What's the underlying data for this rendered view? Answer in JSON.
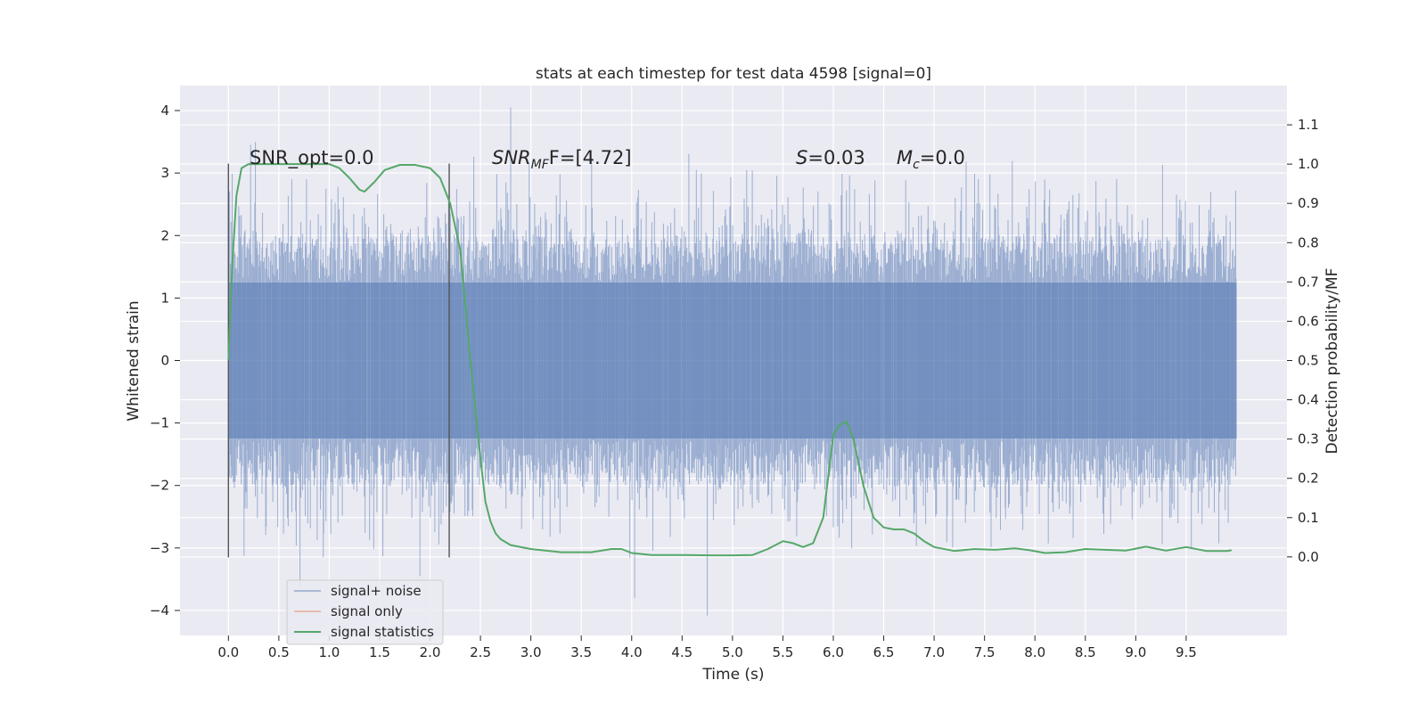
{
  "chart_data": {
    "type": "line",
    "title": "stats at each timestep for test data 4598 [signal=0]",
    "xlabel": "Time (s)",
    "ylabel_left": "Whitened strain",
    "ylabel_right": "Detection probability/MF",
    "xlim": [
      -0.48,
      10.5
    ],
    "ylim_left": [
      -4.4,
      4.4
    ],
    "ylim_right": [
      -0.2,
      1.2
    ],
    "x_ticks": [
      "0.0",
      "0.5",
      "1.0",
      "1.5",
      "2.0",
      "2.5",
      "3.0",
      "3.5",
      "4.0",
      "4.5",
      "5.0",
      "5.5",
      "6.0",
      "6.5",
      "7.0",
      "7.5",
      "8.0",
      "8.5",
      "9.0",
      "9.5"
    ],
    "y_left_ticks": [
      "4",
      "3",
      "2",
      "1",
      "0",
      "−1",
      "−2",
      "−3",
      "−4"
    ],
    "y_right_ticks": [
      "1.1",
      "1.0",
      "0.9",
      "0.8",
      "0.7",
      "0.6",
      "0.5",
      "0.4",
      "0.3",
      "0.2",
      "0.1",
      "0.0"
    ],
    "grid": true,
    "legend_position": "lower-left",
    "colors": {
      "background": "#eaeaf2",
      "grid": "#ffffff",
      "noise": "#4c72b0",
      "signal_only": "#dd8452",
      "statistics": "#55a868",
      "window": "#555555"
    },
    "annotations": {
      "snr_opt": "SNR_opt=0.0",
      "snr_mf_base": "SNR",
      "snr_mf_sub": "MF",
      "snr_mf_value": "F=[4.72]",
      "s_label": "S",
      "s_value": "=0.03",
      "mc_base": "M",
      "mc_sub": "c",
      "mc_value": "=0.0"
    },
    "window_lines_x": [
      0.0,
      2.19
    ],
    "window_lines_ylim": [
      -3.15,
      3.15
    ],
    "series": [
      {
        "name": "signal+ noise",
        "axis": "left",
        "t_range": [
          0.0,
          10.0
        ],
        "core_amplitude": 1.25,
        "spike_range_upper": [
          2.0,
          3.6
        ],
        "spike_range_lower": [
          -2.0,
          -3.5
        ],
        "extremes": [
          [
            2.8,
            4.05
          ],
          [
            0.22,
            3.45
          ],
          [
            4.75,
            -4.08
          ],
          [
            4.03,
            -3.8
          ],
          [
            0.71,
            -3.65
          ],
          [
            1.9,
            -3.45
          ]
        ]
      },
      {
        "name": "signal only",
        "axis": "left",
        "values": []
      },
      {
        "name": "signal statistics",
        "axis": "right",
        "x": [
          0.0,
          0.04,
          0.08,
          0.13,
          0.2,
          0.3,
          0.5,
          0.8,
          1.0,
          1.1,
          1.2,
          1.3,
          1.35,
          1.45,
          1.55,
          1.7,
          1.85,
          2.0,
          2.1,
          2.2,
          2.3,
          2.4,
          2.5,
          2.55,
          2.6,
          2.65,
          2.7,
          2.8,
          3.0,
          3.3,
          3.6,
          3.8,
          3.9,
          4.0,
          4.2,
          4.5,
          4.8,
          5.0,
          5.2,
          5.35,
          5.5,
          5.6,
          5.7,
          5.8,
          5.9,
          6.0,
          6.06,
          6.13,
          6.2,
          6.3,
          6.4,
          6.5,
          6.6,
          6.7,
          6.8,
          6.9,
          7.0,
          7.2,
          7.4,
          7.6,
          7.8,
          7.95,
          8.1,
          8.3,
          8.5,
          8.7,
          8.9,
          9.1,
          9.3,
          9.5,
          9.7,
          9.9,
          9.95
        ],
        "values": [
          0.5,
          0.75,
          0.92,
          0.99,
          1.0,
          1.0,
          1.0,
          1.0,
          1.0,
          0.99,
          0.965,
          0.935,
          0.93,
          0.955,
          0.985,
          0.998,
          0.998,
          0.99,
          0.965,
          0.9,
          0.78,
          0.5,
          0.25,
          0.14,
          0.09,
          0.06,
          0.045,
          0.03,
          0.02,
          0.012,
          0.012,
          0.02,
          0.02,
          0.01,
          0.005,
          0.005,
          0.004,
          0.004,
          0.005,
          0.02,
          0.04,
          0.035,
          0.025,
          0.035,
          0.1,
          0.31,
          0.335,
          0.345,
          0.3,
          0.18,
          0.1,
          0.075,
          0.07,
          0.07,
          0.06,
          0.04,
          0.025,
          0.015,
          0.02,
          0.018,
          0.022,
          0.017,
          0.01,
          0.012,
          0.02,
          0.018,
          0.016,
          0.026,
          0.016,
          0.025,
          0.015,
          0.015,
          0.017
        ]
      }
    ]
  }
}
